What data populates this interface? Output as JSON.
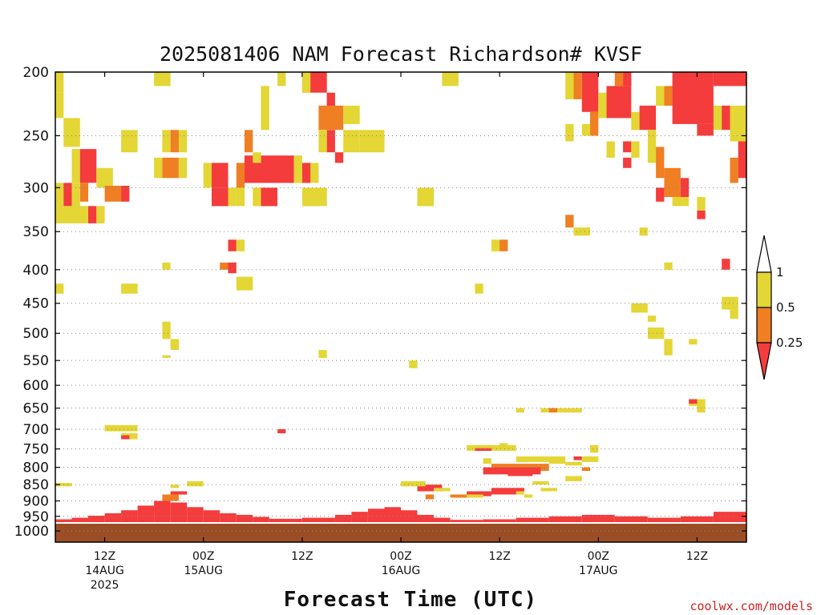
{
  "chart_data": {
    "type": "heatmap",
    "title": "2025081406 NAM Forecast Richardson# KVSF",
    "xlabel": "Forecast Time (UTC)",
    "ylabel": "",
    "credit": "coolwx.com/models",
    "y_axis": {
      "unit": "hPa",
      "scale": "log-pressure",
      "range": [
        1040,
        200
      ],
      "ticks": [
        200,
        250,
        300,
        350,
        400,
        450,
        500,
        550,
        600,
        650,
        700,
        750,
        800,
        850,
        900,
        950,
        1000
      ],
      "grid": true
    },
    "x_axis": {
      "range_hours": [
        0,
        84
      ],
      "ticks": [
        {
          "hour": 6,
          "lines": [
            "12Z",
            "14AUG",
            "2025"
          ]
        },
        {
          "hour": 18,
          "lines": [
            "00Z",
            "15AUG"
          ]
        },
        {
          "hour": 30,
          "lines": [
            "12Z"
          ]
        },
        {
          "hour": 42,
          "lines": [
            "00Z",
            "16AUG"
          ]
        },
        {
          "hour": 54,
          "lines": [
            "12Z"
          ]
        },
        {
          "hour": 66,
          "lines": [
            "00Z",
            "17AUG"
          ]
        },
        {
          "hour": 78,
          "lines": [
            "12Z"
          ]
        }
      ]
    },
    "colorbar": {
      "levels": [
        "1",
        "0.5",
        "0.25"
      ],
      "categories": [
        {
          "range": "0.5–1",
          "color": "#e3d635"
        },
        {
          "range": "0.25–0.5",
          "color": "#ef7f22"
        },
        {
          "range": "<0.25",
          "color": "#f43c3c"
        }
      ],
      "ground_color": "#9b4e26"
    },
    "ground_level_hPa": 975,
    "cells": [
      [
        0,
        1,
        200,
        215,
        "#e3d635"
      ],
      [
        0,
        1,
        215,
        235,
        "#e3d635"
      ],
      [
        1,
        3,
        235,
        260,
        "#e3d635"
      ],
      [
        2,
        3,
        262,
        295,
        "#e3d635"
      ],
      [
        3,
        5,
        262,
        295,
        "#f43c3c"
      ],
      [
        3,
        4,
        295,
        315,
        "#ef7f22"
      ],
      [
        0,
        1,
        295,
        320,
        "#e3d635"
      ],
      [
        1,
        2,
        295,
        320,
        "#f43c3c"
      ],
      [
        2,
        3,
        295,
        320,
        "#e3d635"
      ],
      [
        0,
        4,
        320,
        340,
        "#e3d635"
      ],
      [
        4,
        5,
        320,
        340,
        "#f43c3c"
      ],
      [
        5,
        6,
        320,
        340,
        "#e3d635"
      ],
      [
        5,
        7,
        280,
        300,
        "#e3d635"
      ],
      [
        6,
        8,
        298,
        315,
        "#ef7f22"
      ],
      [
        8,
        9,
        298,
        315,
        "#f43c3c"
      ],
      [
        8,
        10,
        245,
        265,
        "#e3d635"
      ],
      [
        12,
        14,
        200,
        210,
        "#e3d635"
      ],
      [
        13,
        14,
        245,
        265,
        "#e3d635"
      ],
      [
        13,
        15,
        270,
        290,
        "#ef7f22"
      ],
      [
        12,
        13,
        270,
        290,
        "#e3d635"
      ],
      [
        15,
        16,
        270,
        290,
        "#e3d635"
      ],
      [
        14,
        15,
        245,
        265,
        "#ef7f22"
      ],
      [
        15,
        16,
        245,
        265,
        "#e3d635"
      ],
      [
        19,
        21,
        275,
        300,
        "#f43c3c"
      ],
      [
        18,
        19,
        275,
        300,
        "#e3d635"
      ],
      [
        19,
        21,
        300,
        320,
        "#f43c3c"
      ],
      [
        21,
        22,
        300,
        320,
        "#e3d635"
      ],
      [
        22,
        23,
        275,
        300,
        "#ef7f22"
      ],
      [
        23,
        29,
        268,
        295,
        "#f43c3c"
      ],
      [
        29,
        30,
        268,
        295,
        "#e3d635"
      ],
      [
        24,
        25,
        300,
        320,
        "#e3d635"
      ],
      [
        25,
        27,
        300,
        320,
        "#f43c3c"
      ],
      [
        22,
        23,
        300,
        320,
        "#e3d635"
      ],
      [
        23,
        24,
        245,
        265,
        "#ef7f22"
      ],
      [
        24,
        25,
        265,
        275,
        "#e3d635"
      ],
      [
        25,
        26,
        210,
        245,
        "#e3d635"
      ],
      [
        30,
        33,
        200,
        215,
        "#f43c3c"
      ],
      [
        30,
        31,
        200,
        215,
        "#e3d635"
      ],
      [
        27,
        28,
        200,
        210,
        "#e3d635"
      ],
      [
        33,
        34,
        215,
        230,
        "#f43c3c"
      ],
      [
        32,
        35,
        225,
        245,
        "#ef7f22"
      ],
      [
        35,
        37,
        225,
        240,
        "#e3d635"
      ],
      [
        33,
        34,
        245,
        265,
        "#f43c3c"
      ],
      [
        32,
        33,
        245,
        265,
        "#e3d635"
      ],
      [
        34,
        35,
        265,
        275,
        "#f43c3c"
      ],
      [
        31,
        32,
        275,
        295,
        "#e3d635"
      ],
      [
        30,
        31,
        275,
        295,
        "#f43c3c"
      ],
      [
        30,
        33,
        300,
        320,
        "#e3d635"
      ],
      [
        35,
        37,
        245,
        265,
        "#e3d635"
      ],
      [
        37,
        40,
        245,
        265,
        "#e3d635"
      ],
      [
        44,
        46,
        300,
        320,
        "#e3d635"
      ],
      [
        47,
        49,
        200,
        210,
        "#e3d635"
      ],
      [
        21,
        22,
        360,
        375,
        "#f43c3c"
      ],
      [
        22,
        23,
        360,
        375,
        "#e3d635"
      ],
      [
        20,
        21,
        390,
        400,
        "#ef7f22"
      ],
      [
        21,
        22,
        390,
        405,
        "#f43c3c"
      ],
      [
        22,
        24,
        410,
        430,
        "#e3d635"
      ],
      [
        13,
        14,
        390,
        400,
        "#e3d635"
      ],
      [
        8,
        10,
        420,
        435,
        "#e3d635"
      ],
      [
        0,
        1,
        420,
        435,
        "#e3d635"
      ],
      [
        13,
        14,
        480,
        510,
        "#e3d635"
      ],
      [
        14,
        15,
        510,
        530,
        "#e3d635"
      ],
      [
        13,
        14,
        540,
        545,
        "#e3d635"
      ],
      [
        32,
        33,
        530,
        545,
        "#e3d635"
      ],
      [
        43,
        44,
        550,
        565,
        "#e3d635"
      ],
      [
        53,
        54,
        360,
        375,
        "#e3d635"
      ],
      [
        54,
        55,
        360,
        375,
        "#ef7f22"
      ],
      [
        51,
        52,
        420,
        435,
        "#e3d635"
      ],
      [
        59,
        64,
        650,
        660,
        "#e3d635"
      ],
      [
        56,
        57,
        650,
        660,
        "#e3d635"
      ],
      [
        60,
        61,
        650,
        660,
        "#ef7f22"
      ],
      [
        62,
        63,
        330,
        345,
        "#ef7f22"
      ],
      [
        63,
        64,
        345,
        355,
        "#e3d635"
      ],
      [
        64,
        65,
        345,
        355,
        "#e3d635"
      ],
      [
        64,
        66,
        200,
        230,
        "#f43c3c"
      ],
      [
        63,
        64,
        200,
        220,
        "#ef7f22"
      ],
      [
        62,
        63,
        200,
        220,
        "#e3d635"
      ],
      [
        65,
        66,
        230,
        250,
        "#ef7f22"
      ],
      [
        64,
        65,
        240,
        250,
        "#e3d635"
      ],
      [
        62,
        63,
        240,
        255,
        "#e3d635"
      ],
      [
        66,
        67,
        215,
        235,
        "#e3d635"
      ],
      [
        67,
        70,
        210,
        235,
        "#f43c3c"
      ],
      [
        68,
        69,
        200,
        210,
        "#ef7f22"
      ],
      [
        69,
        70,
        200,
        210,
        "#f43c3c"
      ],
      [
        70,
        71,
        230,
        245,
        "#e3d635"
      ],
      [
        69,
        70,
        255,
        265,
        "#f43c3c"
      ],
      [
        67,
        68,
        255,
        270,
        "#e3d635"
      ],
      [
        70,
        71,
        255,
        270,
        "#e3d635"
      ],
      [
        69,
        70,
        270,
        280,
        "#f43c3c"
      ],
      [
        71,
        73,
        225,
        245,
        "#f43c3c"
      ],
      [
        73,
        74,
        210,
        225,
        "#e3d635"
      ],
      [
        74,
        75,
        210,
        225,
        "#ef7f22"
      ],
      [
        75,
        80,
        200,
        240,
        "#f43c3c"
      ],
      [
        80,
        84,
        200,
        210,
        "#f43c3c"
      ],
      [
        78,
        80,
        240,
        250,
        "#f43c3c"
      ],
      [
        80,
        81,
        225,
        245,
        "#e3d635"
      ],
      [
        81,
        82,
        225,
        245,
        "#f43c3c"
      ],
      [
        82,
        84,
        225,
        255,
        "#e3d635"
      ],
      [
        83,
        84,
        255,
        290,
        "#f43c3c"
      ],
      [
        82,
        83,
        270,
        295,
        "#ef7f22"
      ],
      [
        72,
        73,
        245,
        275,
        "#e3d635"
      ],
      [
        73,
        74,
        260,
        290,
        "#ef7f22"
      ],
      [
        74,
        76,
        280,
        310,
        "#ef7f22"
      ],
      [
        76,
        77,
        290,
        310,
        "#f43c3c"
      ],
      [
        73,
        74,
        300,
        315,
        "#f43c3c"
      ],
      [
        75,
        77,
        310,
        320,
        "#e3d635"
      ],
      [
        78,
        79,
        310,
        325,
        "#e3d635"
      ],
      [
        78,
        79,
        325,
        335,
        "#f43c3c"
      ],
      [
        71,
        72,
        345,
        355,
        "#e3d635"
      ],
      [
        81,
        82,
        385,
        400,
        "#f43c3c"
      ],
      [
        74,
        75,
        390,
        400,
        "#e3d635"
      ],
      [
        70,
        72,
        450,
        465,
        "#e3d635"
      ],
      [
        72,
        73,
        470,
        480,
        "#e3d635"
      ],
      [
        72,
        74,
        490,
        510,
        "#e3d635"
      ],
      [
        74,
        75,
        510,
        540,
        "#e3d635"
      ],
      [
        77,
        78,
        510,
        520,
        "#e3d635"
      ],
      [
        81,
        83,
        440,
        460,
        "#e3d635"
      ],
      [
        82,
        83,
        460,
        475,
        "#e3d635"
      ],
      [
        77,
        79,
        630,
        645,
        "#e3d635"
      ],
      [
        77,
        78,
        630,
        640,
        "#f43c3c"
      ],
      [
        78,
        79,
        645,
        660,
        "#e3d635"
      ],
      [
        52,
        53,
        775,
        790,
        "#e3d635"
      ],
      [
        50,
        56,
        740,
        755,
        "#e3d635"
      ],
      [
        54,
        55,
        735,
        745,
        "#e3d635"
      ],
      [
        51,
        53,
        748,
        755,
        "#f43c3c"
      ],
      [
        56,
        60,
        770,
        785,
        "#e3d635"
      ],
      [
        53,
        60,
        790,
        810,
        "#ef7f22"
      ],
      [
        52,
        59,
        800,
        820,
        "#f43c3c"
      ],
      [
        55,
        58,
        810,
        825,
        "#f43c3c"
      ],
      [
        60,
        62,
        770,
        790,
        "#e3d635"
      ],
      [
        62,
        64,
        785,
        795,
        "#e3d635"
      ],
      [
        63,
        64,
        770,
        780,
        "#f43c3c"
      ],
      [
        64,
        66,
        770,
        785,
        "#e3d635"
      ],
      [
        65,
        66,
        740,
        760,
        "#e3d635"
      ],
      [
        64,
        65,
        800,
        810,
        "#ef7f22"
      ],
      [
        62,
        64,
        825,
        840,
        "#e3d635"
      ],
      [
        58,
        60,
        840,
        850,
        "#e3d635"
      ],
      [
        59,
        61,
        860,
        870,
        "#e3d635"
      ],
      [
        57,
        58,
        880,
        890,
        "#e3d635"
      ],
      [
        53,
        57,
        860,
        880,
        "#f43c3c"
      ],
      [
        50,
        53,
        870,
        885,
        "#f43c3c"
      ],
      [
        49,
        52,
        880,
        890,
        "#e3d635"
      ],
      [
        44,
        47,
        850,
        870,
        "#f43c3c"
      ],
      [
        42,
        45,
        840,
        855,
        "#e3d635"
      ],
      [
        46,
        48,
        860,
        870,
        "#e3d635"
      ],
      [
        45,
        46,
        880,
        895,
        "#ef7f22"
      ],
      [
        56,
        57,
        870,
        880,
        "#e3d635"
      ],
      [
        48,
        50,
        880,
        890,
        "#ef7f22"
      ],
      [
        27,
        28,
        700,
        710,
        "#f43c3c"
      ],
      [
        6,
        10,
        690,
        705,
        "#e3d635"
      ],
      [
        8,
        10,
        710,
        725,
        "#e3d635"
      ],
      [
        8,
        9,
        715,
        725,
        "#f43c3c"
      ],
      [
        6,
        7,
        690,
        700,
        "#e3d635"
      ],
      [
        14,
        15,
        850,
        860,
        "#e3d635"
      ],
      [
        16,
        18,
        840,
        855,
        "#e3d635"
      ],
      [
        14,
        16,
        870,
        880,
        "#f43c3c"
      ],
      [
        13,
        15,
        880,
        900,
        "#ef7f22"
      ],
      [
        0,
        2,
        845,
        855,
        "#e3d635"
      ]
    ],
    "surface_layer": [
      [
        0,
        2,
        960
      ],
      [
        2,
        4,
        955
      ],
      [
        4,
        6,
        948
      ],
      [
        6,
        8,
        940
      ],
      [
        8,
        10,
        930
      ],
      [
        10,
        12,
        915
      ],
      [
        12,
        14,
        900
      ],
      [
        14,
        16,
        905
      ],
      [
        16,
        18,
        920
      ],
      [
        18,
        20,
        930
      ],
      [
        20,
        22,
        940
      ],
      [
        22,
        24,
        945
      ],
      [
        24,
        26,
        952
      ],
      [
        26,
        30,
        958
      ],
      [
        30,
        34,
        955
      ],
      [
        34,
        36,
        945
      ],
      [
        36,
        38,
        935
      ],
      [
        38,
        40,
        925
      ],
      [
        40,
        42,
        920
      ],
      [
        42,
        44,
        930
      ],
      [
        44,
        46,
        945
      ],
      [
        46,
        48,
        955
      ],
      [
        48,
        52,
        962
      ],
      [
        52,
        56,
        960
      ],
      [
        56,
        60,
        955
      ],
      [
        60,
        64,
        950
      ],
      [
        64,
        68,
        945
      ],
      [
        68,
        72,
        950
      ],
      [
        72,
        76,
        955
      ],
      [
        76,
        80,
        950
      ],
      [
        80,
        84,
        935
      ]
    ]
  }
}
